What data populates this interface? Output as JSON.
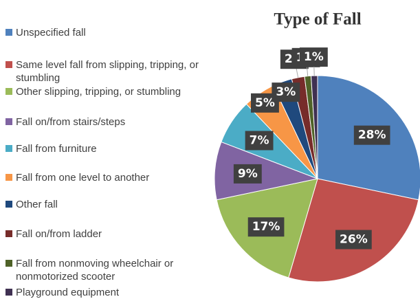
{
  "chart_data": {
    "type": "pie",
    "title": "Type of Fall",
    "categories": [
      "Unspecified fall",
      "Same level fall from slipping, tripping, or stumbling",
      "Other slipping, tripping, or stumbling",
      "Fall on/from stairs/steps",
      "Fall from furniture",
      "Fall from one level to another",
      "Other fall",
      "Fall on/from ladder",
      "Fall from nonmoving wheelchair or nonmotorized scooter",
      "Playground equipment"
    ],
    "values": [
      28,
      26,
      17,
      9,
      7,
      5,
      3,
      2,
      1,
      1
    ],
    "value_labels": [
      "28%",
      "26%",
      "17%",
      "9%",
      "7%",
      "5%",
      "3%",
      "2%",
      "1%",
      "1%"
    ],
    "colors": [
      "#4f81bd",
      "#c0504d",
      "#9bbb59",
      "#8064a2",
      "#4bacc6",
      "#f79646",
      "#1f497d",
      "#772c2a",
      "#4f6228",
      "#403152"
    ],
    "legend": "left"
  }
}
